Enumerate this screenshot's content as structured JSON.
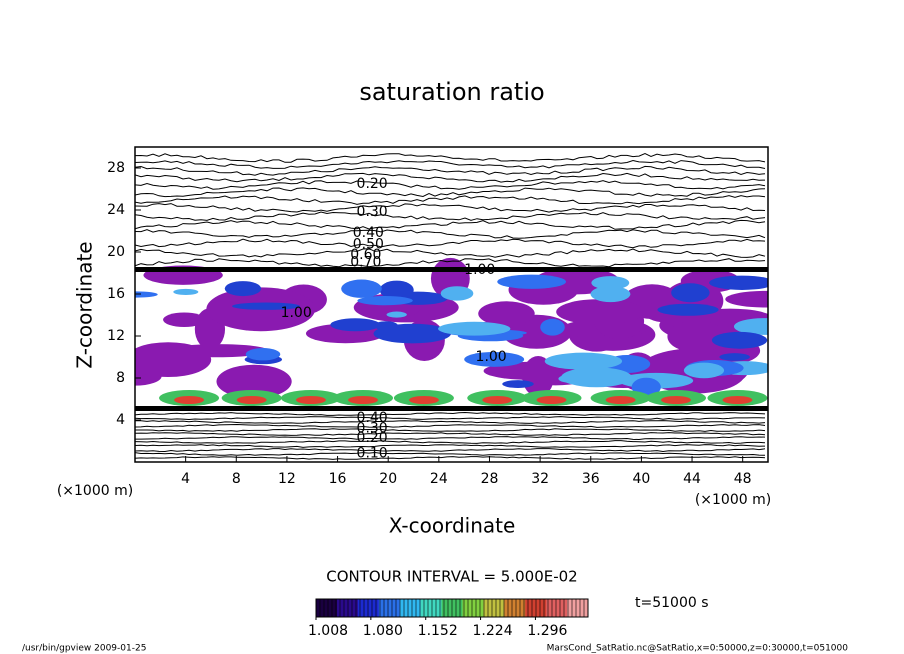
{
  "chart_data": {
    "type": "contour",
    "title": "saturation ratio",
    "x_label": "X-coordinate",
    "y_label": "Z-coordinate",
    "x_unit": "(×1000 m)",
    "y_unit": "(×1000 m)",
    "xlim": [
      0,
      50
    ],
    "ylim": [
      0,
      30
    ],
    "xticks": [
      4,
      8,
      12,
      16,
      20,
      24,
      28,
      32,
      36,
      40,
      44,
      48
    ],
    "yticks": [
      4,
      8,
      12,
      16,
      20,
      24,
      28
    ],
    "contour_labels": [
      {
        "label": "0.20",
        "x": 17.5,
        "y": 26.5
      },
      {
        "label": "0.30",
        "x": 17.5,
        "y": 23.8
      },
      {
        "label": "0.40",
        "x": 17.2,
        "y": 21.8
      },
      {
        "label": "0.50",
        "x": 17.2,
        "y": 20.7
      },
      {
        "label": "0.60",
        "x": 17.0,
        "y": 19.7
      },
      {
        "label": "0.70",
        "x": 17.0,
        "y": 19.0
      },
      {
        "label": "1.00",
        "x": 26.0,
        "y": 18.3
      },
      {
        "label": "1.00",
        "x": 11.5,
        "y": 14.2
      },
      {
        "label": "1.00",
        "x": 26.9,
        "y": 10.0
      },
      {
        "label": "0.40",
        "x": 17.5,
        "y": 4.2
      },
      {
        "label": "0.30",
        "x": 17.5,
        "y": 3.2
      },
      {
        "label": "0.20",
        "x": 17.5,
        "y": 2.3
      },
      {
        "label": "0.10",
        "x": 17.5,
        "y": 0.8
      }
    ],
    "contour_interval": "CONTOUR INTERVAL = 5.000E-02",
    "colorbar": {
      "clim": [
        1.008,
        1.365
      ],
      "ticks": [
        {
          "value": 1.008,
          "label": "1.008"
        },
        {
          "value": 1.08,
          "label": "1.080"
        },
        {
          "value": 1.152,
          "label": "1.152"
        },
        {
          "value": 1.224,
          "label": "1.224"
        },
        {
          "value": 1.296,
          "label": "1.296"
        }
      ],
      "colors": [
        "#1a0040",
        "#2a0a8c",
        "#1c2ad0",
        "#2a70e8",
        "#30b8f0",
        "#40d8c0",
        "#40c060",
        "#80d040",
        "#c0c040",
        "#d08030",
        "#d04030",
        "#e06060",
        "#f0a0a0"
      ]
    },
    "time_label": "t=51000 s",
    "footer_left": "/usr/bin/gpview  2009-01-25",
    "footer_right": "MarsCond_SatRatio.nc@SatRatio,x=0:50000,z=0:30000,t=051000"
  }
}
